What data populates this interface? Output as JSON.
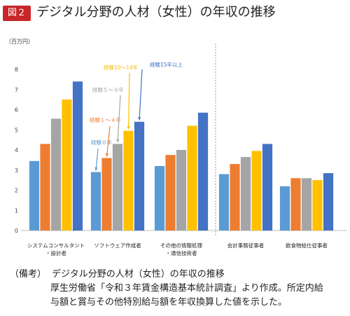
{
  "header": {
    "badge": "図２",
    "title": "デジタル分野の人材（女性）の年収の推移"
  },
  "chart_data": {
    "type": "bar",
    "unit_label": "（百万円）",
    "ylim": [
      0,
      8
    ],
    "yticks": [
      0,
      1,
      2,
      3,
      4,
      5,
      6,
      7,
      8
    ],
    "grid": false,
    "categories": [
      [
        "システムコンサルタント",
        "・設計者"
      ],
      [
        "ソフトウェア作成者"
      ],
      [
        "その他の情報処理",
        "・通信技術者"
      ],
      [
        "会計事務従事者"
      ],
      [
        "飲食物給仕従事者"
      ]
    ],
    "series": [
      {
        "name": "経験０年",
        "color": "#5b9bd5",
        "values": [
          3.45,
          2.9,
          3.2,
          2.8,
          2.2
        ]
      },
      {
        "name": "経験１～４年",
        "color": "#ed7d31",
        "values": [
          4.3,
          3.6,
          3.75,
          3.3,
          2.6
        ]
      },
      {
        "name": "経験５～９年",
        "color": "#a5a5a5",
        "values": [
          5.55,
          4.3,
          4.0,
          3.65,
          2.6
        ]
      },
      {
        "name": "経験10～14年",
        "color": "#ffc000",
        "values": [
          6.5,
          4.95,
          5.2,
          3.95,
          2.5
        ]
      },
      {
        "name": "経験15年以上",
        "color": "#4472c4",
        "values": [
          7.4,
          5.4,
          5.85,
          4.3,
          2.85
        ]
      }
    ],
    "annotations": [
      {
        "text": "経験０年",
        "series": 0
      },
      {
        "text": "経験１～４年",
        "series": 1
      },
      {
        "text": "経験５～９年",
        "series": 2
      },
      {
        "text": "経験10～14年",
        "series": 3
      },
      {
        "text": "経験15年以上",
        "series": 4
      }
    ]
  },
  "note": {
    "tag": "（備考）",
    "line1": "デジタル分野の人材（女性）の年収の推移",
    "line2": "厚生労働省「令和３年賃金構造基本統計調査」より作成。所定内給",
    "line3": "与額と賞与その他特別給与額を年収換算した値を示した。"
  }
}
